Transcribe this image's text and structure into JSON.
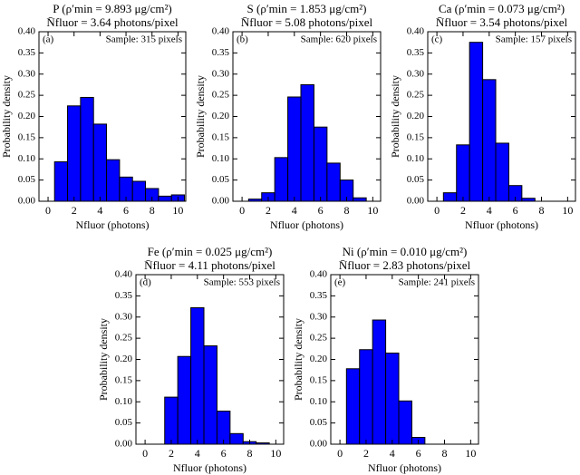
{
  "chart_data": [
    {
      "type": "histogram",
      "title": "P (ρ′min = 9.893 μg/cm²)",
      "subtitle": "N̄fluor = 3.64 photons/pixel",
      "panel": "(a)",
      "sample": "Sample: 315 pixels",
      "xlabel": "Nfluor (photons)",
      "ylabel": "Probability density",
      "color": "#0000ff",
      "bins": [
        0.5,
        1.5,
        2.5,
        3.5,
        4.5,
        5.5,
        6.5,
        7.5,
        8.5,
        9.5,
        10.5
      ],
      "values": [
        0.093,
        0.225,
        0.245,
        0.182,
        0.098,
        0.057,
        0.047,
        0.03,
        0.012,
        0.015
      ],
      "xlim": [
        -0.7,
        10.6
      ],
      "ylim": [
        0,
        0.4
      ],
      "xticks": [
        0,
        2,
        4,
        6,
        8,
        10
      ],
      "yticks": [
        {
          "value": 0,
          "label": "0.00"
        },
        {
          "value": 0.05,
          "label": "0.05"
        },
        {
          "value": 0.1,
          "label": "0.10"
        },
        {
          "value": 0.15,
          "label": "0.15"
        },
        {
          "value": 0.2,
          "label": "0.20"
        },
        {
          "value": 0.25,
          "label": "0.25"
        },
        {
          "value": 0.3,
          "label": "0.30"
        },
        {
          "value": 0.35,
          "label": "0.35"
        },
        {
          "value": 0.4,
          "label": "0.40"
        }
      ]
    },
    {
      "type": "histogram",
      "title": "S (ρ′min = 1.853 μg/cm²)",
      "subtitle": "N̄fluor = 5.08 photons/pixel",
      "panel": "(b)",
      "sample": "Sample: 620 pixels",
      "xlabel": "Nfluor (photons)",
      "ylabel": "Probability density",
      "color": "#0000ff",
      "bins": [
        0.5,
        1.5,
        2.5,
        3.5,
        4.5,
        5.5,
        6.5,
        7.5,
        8.5,
        9.5
      ],
      "values": [
        0.005,
        0.02,
        0.103,
        0.246,
        0.275,
        0.175,
        0.09,
        0.05,
        0.008
      ],
      "xlim": [
        -0.7,
        10.6
      ],
      "ylim": [
        0,
        0.4
      ],
      "xticks": [
        0,
        2,
        4,
        6,
        8,
        10
      ],
      "yticks": [
        {
          "value": 0,
          "label": "0.00"
        },
        {
          "value": 0.05,
          "label": "0.05"
        },
        {
          "value": 0.1,
          "label": "0.10"
        },
        {
          "value": 0.15,
          "label": "0.15"
        },
        {
          "value": 0.2,
          "label": "0.20"
        },
        {
          "value": 0.25,
          "label": "0.25"
        },
        {
          "value": 0.3,
          "label": "0.30"
        },
        {
          "value": 0.35,
          "label": "0.35"
        },
        {
          "value": 0.4,
          "label": "0.40"
        }
      ]
    },
    {
      "type": "histogram",
      "title": "Ca (ρ′min = 0.073 μg/cm²)",
      "subtitle": "N̄fluor = 3.54 photons/pixel",
      "panel": "(c)",
      "sample": "Sample: 157 pixels",
      "xlabel": "Nfluor (photons)",
      "ylabel": "Probability density",
      "color": "#0000ff",
      "bins": [
        0.5,
        1.5,
        2.5,
        3.5,
        4.5,
        5.5,
        6.5,
        7.5
      ],
      "values": [
        0.02,
        0.133,
        0.375,
        0.287,
        0.137,
        0.037,
        0.007
      ],
      "xlim": [
        -0.7,
        10.6
      ],
      "ylim": [
        0,
        0.4
      ],
      "xticks": [
        0,
        2,
        4,
        6,
        8,
        10
      ],
      "yticks": [
        {
          "value": 0,
          "label": "0.00"
        },
        {
          "value": 0.05,
          "label": "0.05"
        },
        {
          "value": 0.1,
          "label": "0.10"
        },
        {
          "value": 0.15,
          "label": "0.15"
        },
        {
          "value": 0.2,
          "label": "0.20"
        },
        {
          "value": 0.25,
          "label": "0.25"
        },
        {
          "value": 0.3,
          "label": "0.30"
        },
        {
          "value": 0.35,
          "label": "0.35"
        },
        {
          "value": 0.4,
          "label": "0.40"
        }
      ]
    },
    {
      "type": "histogram",
      "title": "Fe (ρ′min = 0.025 μg/cm²)",
      "subtitle": "N̄fluor = 4.11 photons/pixel",
      "panel": "(d)",
      "sample": "Sample: 553 pixels",
      "xlabel": "Nfluor (photons)",
      "ylabel": "Probability density",
      "color": "#0000ff",
      "bins": [
        1.5,
        2.5,
        3.5,
        4.5,
        5.5,
        6.5,
        7.5,
        8.5,
        9.5
      ],
      "values": [
        0.111,
        0.207,
        0.322,
        0.232,
        0.078,
        0.025,
        0.006,
        0.003
      ],
      "xlim": [
        -0.7,
        10.6
      ],
      "ylim": [
        0,
        0.4
      ],
      "xticks": [
        0,
        2,
        4,
        6,
        8,
        10
      ],
      "yticks": [
        {
          "value": 0,
          "label": "0.00"
        },
        {
          "value": 0.05,
          "label": "0.05"
        },
        {
          "value": 0.1,
          "label": "0.10"
        },
        {
          "value": 0.15,
          "label": "0.15"
        },
        {
          "value": 0.2,
          "label": "0.20"
        },
        {
          "value": 0.25,
          "label": "0.25"
        },
        {
          "value": 0.3,
          "label": "0.30"
        },
        {
          "value": 0.35,
          "label": "0.35"
        },
        {
          "value": 0.4,
          "label": "0.40"
        }
      ]
    },
    {
      "type": "histogram",
      "title": "Ni (ρ′min = 0.010 μg/cm²)",
      "subtitle": "N̄fluor = 2.83 photons/pixel",
      "panel": "(e)",
      "sample": "Sample: 241 pixels",
      "xlabel": "Nfluor (photons)",
      "ylabel": "Probability density",
      "color": "#0000ff",
      "bins": [
        0.5,
        1.5,
        2.5,
        3.5,
        4.5,
        5.5,
        6.5
      ],
      "values": [
        0.178,
        0.223,
        0.293,
        0.215,
        0.102,
        0.016
      ],
      "xlim": [
        -0.7,
        10.6
      ],
      "ylim": [
        0,
        0.4
      ],
      "xticks": [
        0,
        2,
        4,
        6,
        8,
        10
      ],
      "yticks": [
        {
          "value": 0,
          "label": "0.00"
        },
        {
          "value": 0.05,
          "label": "0.05"
        },
        {
          "value": 0.1,
          "label": "0.10"
        },
        {
          "value": 0.15,
          "label": "0.15"
        },
        {
          "value": 0.2,
          "label": "0.20"
        },
        {
          "value": 0.25,
          "label": "0.25"
        },
        {
          "value": 0.3,
          "label": "0.30"
        },
        {
          "value": 0.35,
          "label": "0.35"
        },
        {
          "value": 0.4,
          "label": "0.40"
        }
      ]
    }
  ]
}
